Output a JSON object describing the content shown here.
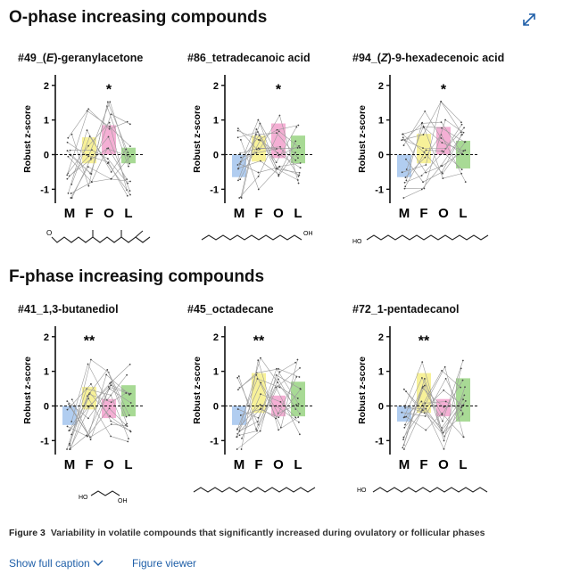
{
  "header": {
    "section1_title": "O-phase increasing compounds",
    "section2_title": "F-phase increasing compounds",
    "expand_icon": "expand-arrows-icon"
  },
  "colors": {
    "M": "#a9c8ee",
    "F": "#f6ef8e",
    "O": "#f3a6cf",
    "L": "#9fd68a"
  },
  "chart_data": [
    {
      "type": "bar",
      "title_pre": "#49_(",
      "title_em": "E",
      "title_post": ")-geranylacetone",
      "ylabel": "Robust z-score",
      "categories": [
        "M",
        "F",
        "O",
        "L"
      ],
      "values": [
        -0.35,
        0.5,
        0.85,
        0.2
      ],
      "bottoms": [
        -0.35,
        -0.25,
        0.0,
        -0.25
      ],
      "ylim": [
        -1.3,
        2.2
      ],
      "yticks": [
        "2",
        "1",
        "0",
        "-1"
      ],
      "sig": "*",
      "sig_index": 2,
      "molecule": "geranylacetone-structure"
    },
    {
      "type": "bar",
      "title_pre": "#86_tetradecanoic acid",
      "title_em": "",
      "title_post": "",
      "ylabel": "Robust z-score",
      "categories": [
        "M",
        "F",
        "O",
        "L"
      ],
      "values": [
        -0.65,
        0.55,
        0.9,
        0.55
      ],
      "bottoms": [
        0.0,
        -0.2,
        -0.1,
        -0.25
      ],
      "ylim": [
        -1.3,
        2.2
      ],
      "yticks": [
        "2",
        "1",
        "0",
        "-1"
      ],
      "sig": "*",
      "sig_index": 2,
      "molecule": "tetradecanoic-acid-structure"
    },
    {
      "type": "bar",
      "title_pre": "#94_(",
      "title_em": "Z",
      "title_post": ")-9-hexadecenoic acid",
      "ylabel": "Robust z-score",
      "categories": [
        "M",
        "F",
        "O",
        "L"
      ],
      "values": [
        -0.65,
        0.6,
        0.8,
        0.4
      ],
      "bottoms": [
        0.0,
        -0.25,
        0.0,
        -0.4
      ],
      "ylim": [
        -1.3,
        2.2
      ],
      "yticks": [
        "2",
        "1",
        "0",
        "-1"
      ],
      "sig": "*",
      "sig_index": 2,
      "molecule": "hexadecenoic-acid-structure"
    },
    {
      "type": "bar",
      "title_pre": "#41_1,3-butanediol",
      "title_em": "",
      "title_post": "",
      "ylabel": "Robust z-score",
      "categories": [
        "M",
        "F",
        "O",
        "L"
      ],
      "values": [
        -0.55,
        0.55,
        0.2,
        0.6
      ],
      "bottoms": [
        0.0,
        -0.1,
        -0.35,
        -0.3
      ],
      "ylim": [
        -1.3,
        2.2
      ],
      "yticks": [
        "2",
        "1",
        "0",
        "-1"
      ],
      "sig": "**",
      "sig_index": 1,
      "molecule": "butanediol-structure"
    },
    {
      "type": "bar",
      "title_pre": "#45_octadecane",
      "title_em": "",
      "title_post": "",
      "ylabel": "Robust z-score",
      "categories": [
        "M",
        "F",
        "O",
        "L"
      ],
      "values": [
        -0.55,
        0.95,
        0.3,
        0.7
      ],
      "bottoms": [
        0.0,
        -0.2,
        -0.3,
        -0.3
      ],
      "ylim": [
        -1.3,
        2.2
      ],
      "yticks": [
        "2",
        "1",
        "0",
        "-1"
      ],
      "sig": "**",
      "sig_index": 1,
      "molecule": "octadecane-structure"
    },
    {
      "type": "bar",
      "title_pre": "#72_1-pentadecanol",
      "title_em": "",
      "title_post": "",
      "ylabel": "Robust z-score",
      "categories": [
        "M",
        "F",
        "O",
        "L"
      ],
      "values": [
        -0.45,
        0.95,
        0.2,
        0.8
      ],
      "bottoms": [
        0.0,
        -0.2,
        -0.3,
        -0.45
      ],
      "ylim": [
        -1.3,
        2.2
      ],
      "yticks": [
        "2",
        "1",
        "0",
        "-1"
      ],
      "sig": "**",
      "sig_index": 1,
      "molecule": "pentadecanol-structure"
    }
  ],
  "molecules": {
    "oh": "OH",
    "ho": "HO",
    "o": "O"
  },
  "caption": {
    "label": "Figure 3",
    "text": "Variability in volatile compounds that significantly increased during ovulatory or follicular phases"
  },
  "links": {
    "show_caption": "Show full caption",
    "figure_viewer": "Figure viewer"
  }
}
